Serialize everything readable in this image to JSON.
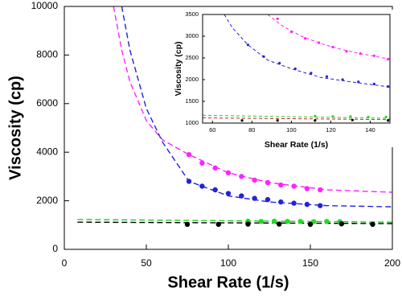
{
  "chart_data": [
    {
      "type": "scatter",
      "x_label": "Shear Rate (1/s)",
      "y_label": "Viscosity (cp)",
      "xlim": [
        0,
        200
      ],
      "xticks": [
        0,
        50,
        100,
        150,
        200
      ],
      "ylim": [
        0,
        10000
      ],
      "yticks": [
        0,
        2000,
        4000,
        6000,
        8000,
        10000
      ],
      "series": [
        {
          "color": "#ff22ff",
          "style": "dashed",
          "x": [
            30,
            35,
            40,
            50,
            60,
            76,
            100,
            125,
            160,
            200
          ],
          "values": [
            10000,
            8200,
            6900,
            5300,
            4500,
            3900,
            3150,
            2750,
            2450,
            2350
          ]
        },
        {
          "color": "#2222dd",
          "style": "dashed",
          "x": [
            35,
            40,
            50,
            60,
            76,
            100,
            125,
            160,
            200
          ],
          "values": [
            10000,
            8200,
            5800,
            4400,
            2800,
            2200,
            1950,
            1800,
            1750
          ]
        },
        {
          "color": "#22cc22",
          "style": "dashed",
          "x": [
            8,
            200
          ],
          "values": [
            1230,
            1120
          ]
        },
        {
          "color": "#000000",
          "style": "dashed",
          "x": [
            8,
            200
          ],
          "values": [
            1120,
            1060
          ]
        },
        {
          "color": "#ff22ff",
          "style": "marker",
          "x": [
            76,
            84,
            92,
            100,
            108,
            116,
            124,
            132,
            140,
            148,
            156
          ],
          "values": [
            3900,
            3550,
            3350,
            3150,
            3000,
            2850,
            2750,
            2650,
            2600,
            2500,
            2450
          ]
        },
        {
          "color": "#2222dd",
          "style": "marker",
          "x": [
            76,
            84,
            92,
            100,
            108,
            116,
            124,
            132,
            140,
            148,
            156
          ],
          "values": [
            2800,
            2600,
            2450,
            2300,
            2200,
            2100,
            2050,
            1950,
            1900,
            1850,
            1800
          ]
        },
        {
          "color": "#22dd22",
          "style": "marker",
          "x": [
            112,
            120,
            128,
            136,
            144,
            152,
            160,
            168
          ],
          "values": [
            1160,
            1150,
            1160,
            1150,
            1150,
            1140,
            1150,
            1140
          ]
        },
        {
          "color": "#000000",
          "style": "marker",
          "x": [
            75,
            94,
            112,
            131,
            150,
            169,
            188
          ],
          "values": [
            1030,
            1030,
            1040,
            1040,
            1030,
            1050,
            1030
          ]
        }
      ]
    },
    {
      "type": "scatter",
      "x_label": "Shear Rate (1/s)",
      "y_label": "Viscosity (cp)",
      "xlim": [
        55,
        150
      ],
      "xticks": [
        60,
        80,
        100,
        120,
        140
      ],
      "ylim": [
        1000,
        3500
      ],
      "yticks": [
        1000,
        1500,
        2000,
        2500,
        3000,
        3500
      ],
      "series": [
        {
          "color": "#ff22ff",
          "style": "dashed",
          "x": [
            88,
            95,
            105,
            115,
            125,
            135,
            150
          ],
          "values": [
            3500,
            3250,
            3000,
            2830,
            2700,
            2600,
            2470
          ]
        },
        {
          "color": "#2222dd",
          "style": "dashed",
          "x": [
            66,
            70,
            78,
            88,
            100,
            115,
            130,
            150
          ],
          "values": [
            3500,
            3200,
            2800,
            2450,
            2250,
            2050,
            1950,
            1830
          ]
        },
        {
          "color": "#22cc22",
          "style": "dashed",
          "x": [
            55,
            150
          ],
          "values": [
            1180,
            1110
          ]
        },
        {
          "color": "#cc2222",
          "style": "dashed",
          "x": [
            55,
            150
          ],
          "values": [
            1120,
            1080
          ]
        },
        {
          "color": "#ff22ff",
          "style": "marker",
          "x": [
            93,
            100,
            107,
            114,
            121,
            128,
            135,
            142,
            149
          ],
          "values": [
            3400,
            3100,
            2950,
            2850,
            2750,
            2650,
            2600,
            2550,
            2470
          ]
        },
        {
          "color": "#2222dd",
          "style": "marker",
          "x": [
            78,
            86,
            94,
            102,
            110,
            118,
            126,
            134,
            142,
            149
          ],
          "values": [
            2800,
            2530,
            2380,
            2250,
            2150,
            2070,
            2000,
            1950,
            1900,
            1840
          ]
        },
        {
          "color": "#22dd22",
          "style": "marker",
          "x": [
            112,
            121,
            130,
            139,
            148
          ],
          "values": [
            1160,
            1150,
            1150,
            1140,
            1140
          ]
        },
        {
          "color": "#000000",
          "style": "marker",
          "x": [
            75,
            93,
            112,
            131,
            149
          ],
          "values": [
            1060,
            1060,
            1060,
            1070,
            1060
          ]
        }
      ]
    }
  ]
}
